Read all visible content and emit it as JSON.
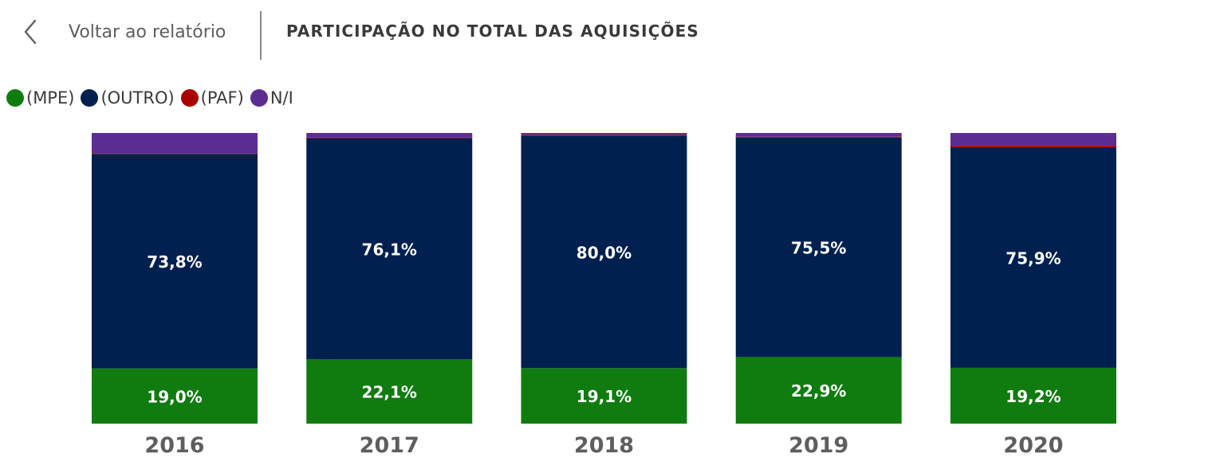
{
  "header": {
    "back_label": "Voltar ao relatório",
    "page_title": "PARTICIPAÇÃO NO TOTAL DAS AQUISIÇÕES"
  },
  "colors": {
    "MPE": "#107c10",
    "OUTRO": "#002050",
    "PAF": "#a80000",
    "NI": "#5c2d91",
    "bar_label": "#ffffff",
    "axis_label": "#605e5c"
  },
  "legend": [
    {
      "key": "MPE",
      "label": "(MPE)",
      "color": "#107c10"
    },
    {
      "key": "OUTRO",
      "label": "(OUTRO)",
      "color": "#002050"
    },
    {
      "key": "PAF",
      "label": "(PAF)",
      "color": "#a80000"
    },
    {
      "key": "NI",
      "label": "N/I",
      "color": "#5c2d91"
    }
  ],
  "chart_data": {
    "type": "bar",
    "stacked": true,
    "percent": true,
    "categories": [
      "2016",
      "2017",
      "2018",
      "2019",
      "2020"
    ],
    "series": [
      {
        "name": "(MPE)",
        "values": [
          19.0,
          22.1,
          19.1,
          22.9,
          19.2
        ],
        "labels": [
          "19,0%",
          "22,1%",
          "19,1%",
          "22,9%",
          "19,2%"
        ]
      },
      {
        "name": "(OUTRO)",
        "values": [
          73.8,
          76.1,
          80.0,
          75.5,
          75.9
        ],
        "labels": [
          "73,8%",
          "76,1%",
          "80,0%",
          "75,5%",
          "75,9%"
        ]
      },
      {
        "name": "(PAF)",
        "values": [
          0.3,
          0.2,
          0.3,
          0.3,
          0.5
        ]
      },
      {
        "name": "N/I",
        "values": [
          6.9,
          1.6,
          0.6,
          1.3,
          4.4
        ]
      }
    ],
    "ylim": [
      0,
      100
    ],
    "grid": false,
    "legend_position": "top-left"
  }
}
